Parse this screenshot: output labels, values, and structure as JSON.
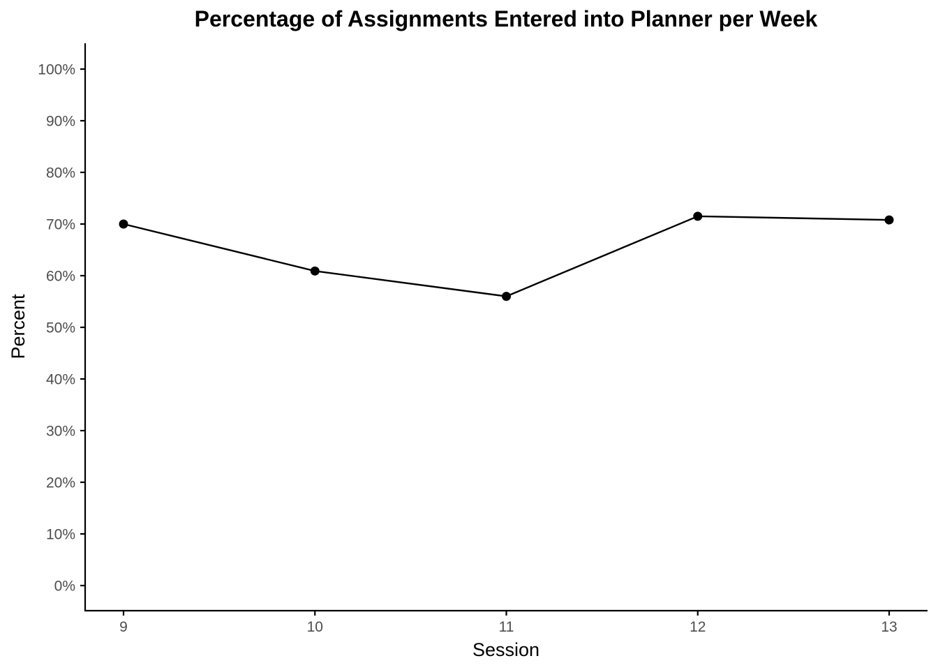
{
  "chart_data": {
    "type": "line",
    "title": "Percentage of Assignments Entered into Planner per Week",
    "xlabel": "Session",
    "ylabel": "Percent",
    "x": [
      9,
      10,
      11,
      12,
      13
    ],
    "x_tick_labels": [
      "9",
      "10",
      "11",
      "12",
      "13"
    ],
    "y_tick_values": [
      0,
      10,
      20,
      30,
      40,
      50,
      60,
      70,
      80,
      90,
      100
    ],
    "y_tick_labels": [
      "0%",
      "10%",
      "20%",
      "30%",
      "40%",
      "50%",
      "60%",
      "70%",
      "80%",
      "90%",
      "100%"
    ],
    "series": [
      {
        "values": [
          70.0,
          60.9,
          56.0,
          71.5,
          70.8
        ]
      }
    ],
    "xlim": [
      9,
      13
    ],
    "ylim": [
      0,
      100
    ],
    "grid": false,
    "legend": "none",
    "colors": {
      "line": "#000000",
      "point": "#000000",
      "tick_label": "#4d4d4d"
    }
  }
}
